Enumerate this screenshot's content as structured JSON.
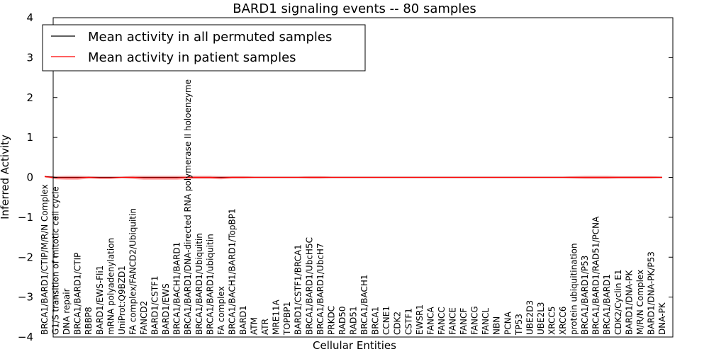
{
  "chart_data": {
    "type": "line",
    "title": "BARD1 signaling events -- 80 samples",
    "xlabel": "Cellular Entities",
    "ylabel": "Inferred Activity",
    "ylim": [
      -4,
      4
    ],
    "yticks": [
      "−4",
      "−3",
      "−2",
      "−1",
      "0",
      "1",
      "2",
      "3",
      "4"
    ],
    "legend": {
      "placement": "top-left",
      "entries": [
        {
          "label": "Mean activity in all permuted samples",
          "color": "#000000"
        },
        {
          "label": "Mean activity in patient samples",
          "color": "#ff0000"
        }
      ]
    },
    "categories": [
      "BRCA1/BARD1/CTIP/M/R/N Complex",
      "G1/S transition of mitotic cell cycle",
      "DNA repair",
      "BRCA1/BARD1/CTIP",
      "RBBP8",
      "BARD1/EWS-Fli1",
      "mRNA polyadenylation",
      "UniProt:Q9BZD1",
      "FA complex/FANCD2/Ubiquitin",
      "FANCD2",
      "BARD1/CSTF1",
      "BARD1/EWS",
      "BRCA1/BACH1/BARD1",
      "BRCA1/BARD1/DNA-directed RNA polymerase II holoenzyme",
      "BRCA1/BARD1/Ubiquitin",
      "BRCA1/BARD1/ubiquitin",
      "FA complex",
      "BRCA1/BACH1/BARD1/TopBP1",
      "BARD1",
      "ATM",
      "ATR",
      "MRE11A",
      "TOPBP1",
      "BARD1/CSTF1/BRCA1",
      "BRCA1/BARD1/UbcH5C",
      "BRCA1/BARD1/UbcH7",
      "PRKDC",
      "RAD50",
      "RAD51",
      "BRCA1/BACH1",
      "BRCA1",
      "CCNE1",
      "CDK2",
      "CSTF1",
      "EWSR1",
      "FANCA",
      "FANCC",
      "FANCE",
      "FANCF",
      "FANCG",
      "FANCL",
      "NBN",
      "PCNA",
      "TP53",
      "UBE2D3",
      "UBE2L3",
      "XRCC5",
      "XRCC6",
      "protein ubiquitination",
      "BRCA1/BARD1/P53",
      "BRCA1/BARD1/RAD51/PCNA",
      "BRCA1/BARD1",
      "CDK2/Cyclin E1",
      "BARD1/DNA-PK",
      "M/R/N Complex",
      "BARD1/DNA-PK/P53",
      "DNA-PK"
    ],
    "series": [
      {
        "name": "Mean activity in all permuted samples",
        "values": [
          0.02,
          0,
          0,
          0,
          0,
          0,
          0,
          0,
          0,
          0,
          0,
          0,
          0,
          0,
          0,
          0,
          0,
          0,
          0,
          0,
          0,
          0,
          0,
          0,
          0,
          0,
          0,
          0,
          0,
          0,
          0,
          0,
          0,
          0,
          0,
          0,
          0,
          0,
          0,
          0,
          0,
          0,
          0,
          0,
          0,
          0,
          0,
          0,
          0,
          0,
          0,
          0,
          0,
          0,
          0,
          0,
          0
        ]
      },
      {
        "name": "Mean activity in patient samples",
        "values": [
          0.02,
          -0.01,
          -0.01,
          -0.01,
          0,
          -0.01,
          -0.01,
          0,
          0,
          -0.01,
          -0.01,
          -0.01,
          -0.01,
          0,
          0,
          0,
          -0.01,
          0,
          0,
          0,
          0,
          0,
          0,
          0,
          0,
          0,
          0,
          0,
          0,
          0,
          0,
          0,
          0,
          0,
          0,
          0,
          0,
          0,
          0,
          0,
          0,
          0,
          0,
          0,
          0,
          0,
          0,
          0,
          0,
          0,
          0,
          0,
          0,
          0,
          0,
          0,
          0
        ]
      }
    ],
    "band_halfwidth": [
      0.02,
      0.04,
      0.05,
      0.05,
      0.03,
      0.03,
      0.03,
      0.02,
      0.04,
      0.05,
      0.05,
      0.05,
      0.05,
      0.04,
      0.04,
      0.04,
      0.04,
      0.03,
      0.03,
      0.02,
      0.02,
      0.02,
      0.02,
      0.02,
      0.03,
      0.03,
      0.02,
      0.02,
      0.02,
      0.02,
      0.02,
      0.02,
      0.02,
      0.02,
      0.02,
      0.02,
      0.02,
      0.02,
      0.02,
      0.02,
      0.02,
      0.02,
      0.02,
      0.02,
      0.02,
      0.02,
      0.02,
      0.02,
      0.03,
      0.04,
      0.04,
      0.04,
      0.03,
      0.03,
      0.03,
      0.03,
      0.02
    ]
  }
}
